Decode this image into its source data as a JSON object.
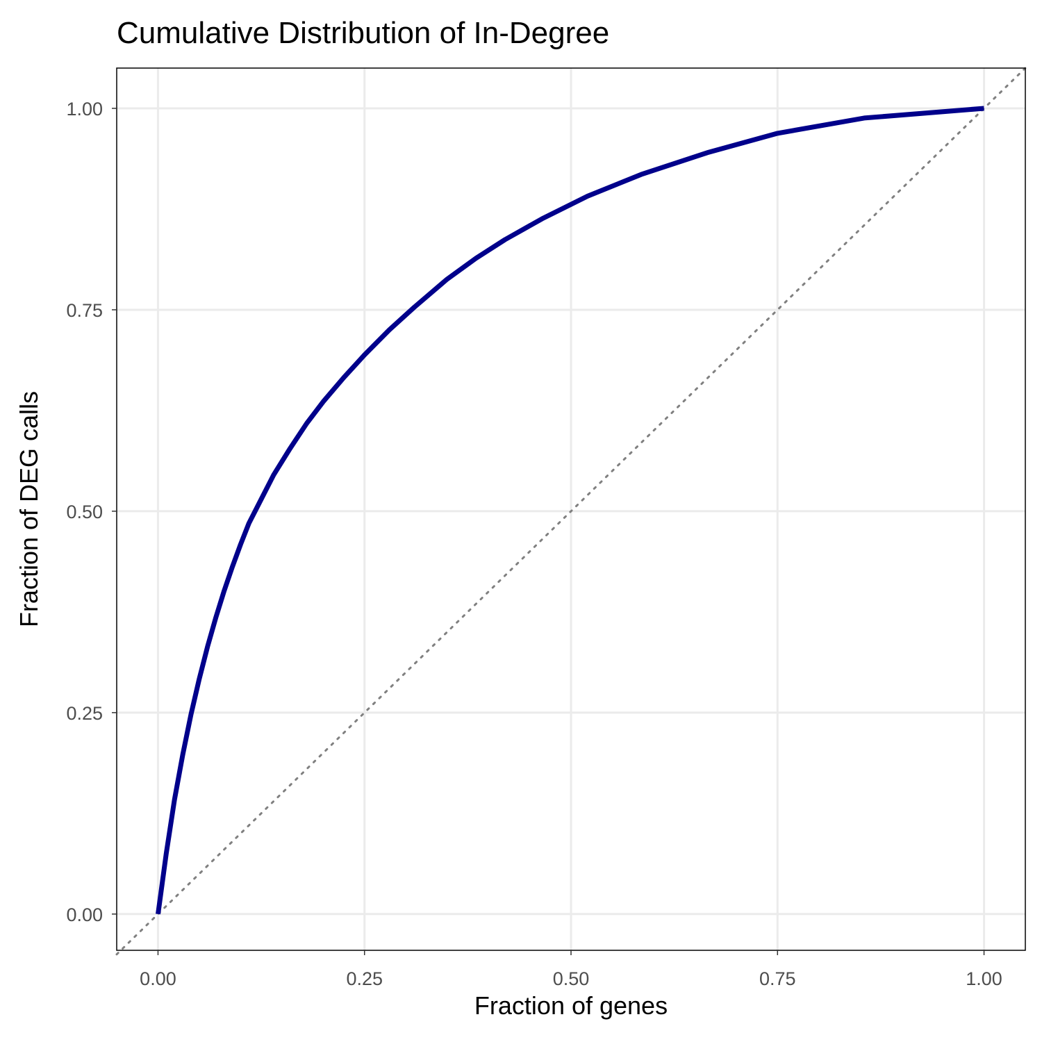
{
  "chart_data": {
    "type": "line",
    "title": "Cumulative Distribution of In-Degree",
    "xlabel": "Fraction of genes",
    "ylabel": "Fraction of DEG calls",
    "xlim": [
      -0.05,
      1.05
    ],
    "ylim": [
      -0.045,
      1.05
    ],
    "x_ticks": [
      0,
      0.25,
      0.5,
      0.75,
      1
    ],
    "y_ticks": [
      0,
      0.25,
      0.5,
      0.75,
      1
    ],
    "x_tick_labels": [
      "0.00",
      "0.25",
      "0.50",
      "0.75",
      "1.00"
    ],
    "y_tick_labels": [
      "0.00",
      "0.25",
      "0.50",
      "0.75",
      "1.00"
    ],
    "grid": true,
    "reference_line": {
      "style": "dotted",
      "x": [
        -0.05,
        1.05
      ],
      "y": [
        -0.05,
        1.05
      ],
      "color": "#808080"
    },
    "series": [
      {
        "color": "#00008B",
        "x": [
          0.0,
          0.01,
          0.02,
          0.03,
          0.04,
          0.05,
          0.06,
          0.07,
          0.08,
          0.09,
          0.1,
          0.11,
          0.125,
          0.14,
          0.16,
          0.18,
          0.2,
          0.225,
          0.25,
          0.28,
          0.31,
          0.35,
          0.385,
          0.42,
          0.465,
          0.52,
          0.585,
          0.665,
          0.75,
          0.855,
          1.0
        ],
        "y": [
          0.0,
          0.075,
          0.142,
          0.198,
          0.248,
          0.292,
          0.332,
          0.368,
          0.401,
          0.431,
          0.459,
          0.485,
          0.515,
          0.545,
          0.578,
          0.609,
          0.636,
          0.666,
          0.694,
          0.725,
          0.753,
          0.788,
          0.814,
          0.837,
          0.863,
          0.891,
          0.918,
          0.945,
          0.969,
          0.988,
          1.0
        ]
      }
    ]
  }
}
